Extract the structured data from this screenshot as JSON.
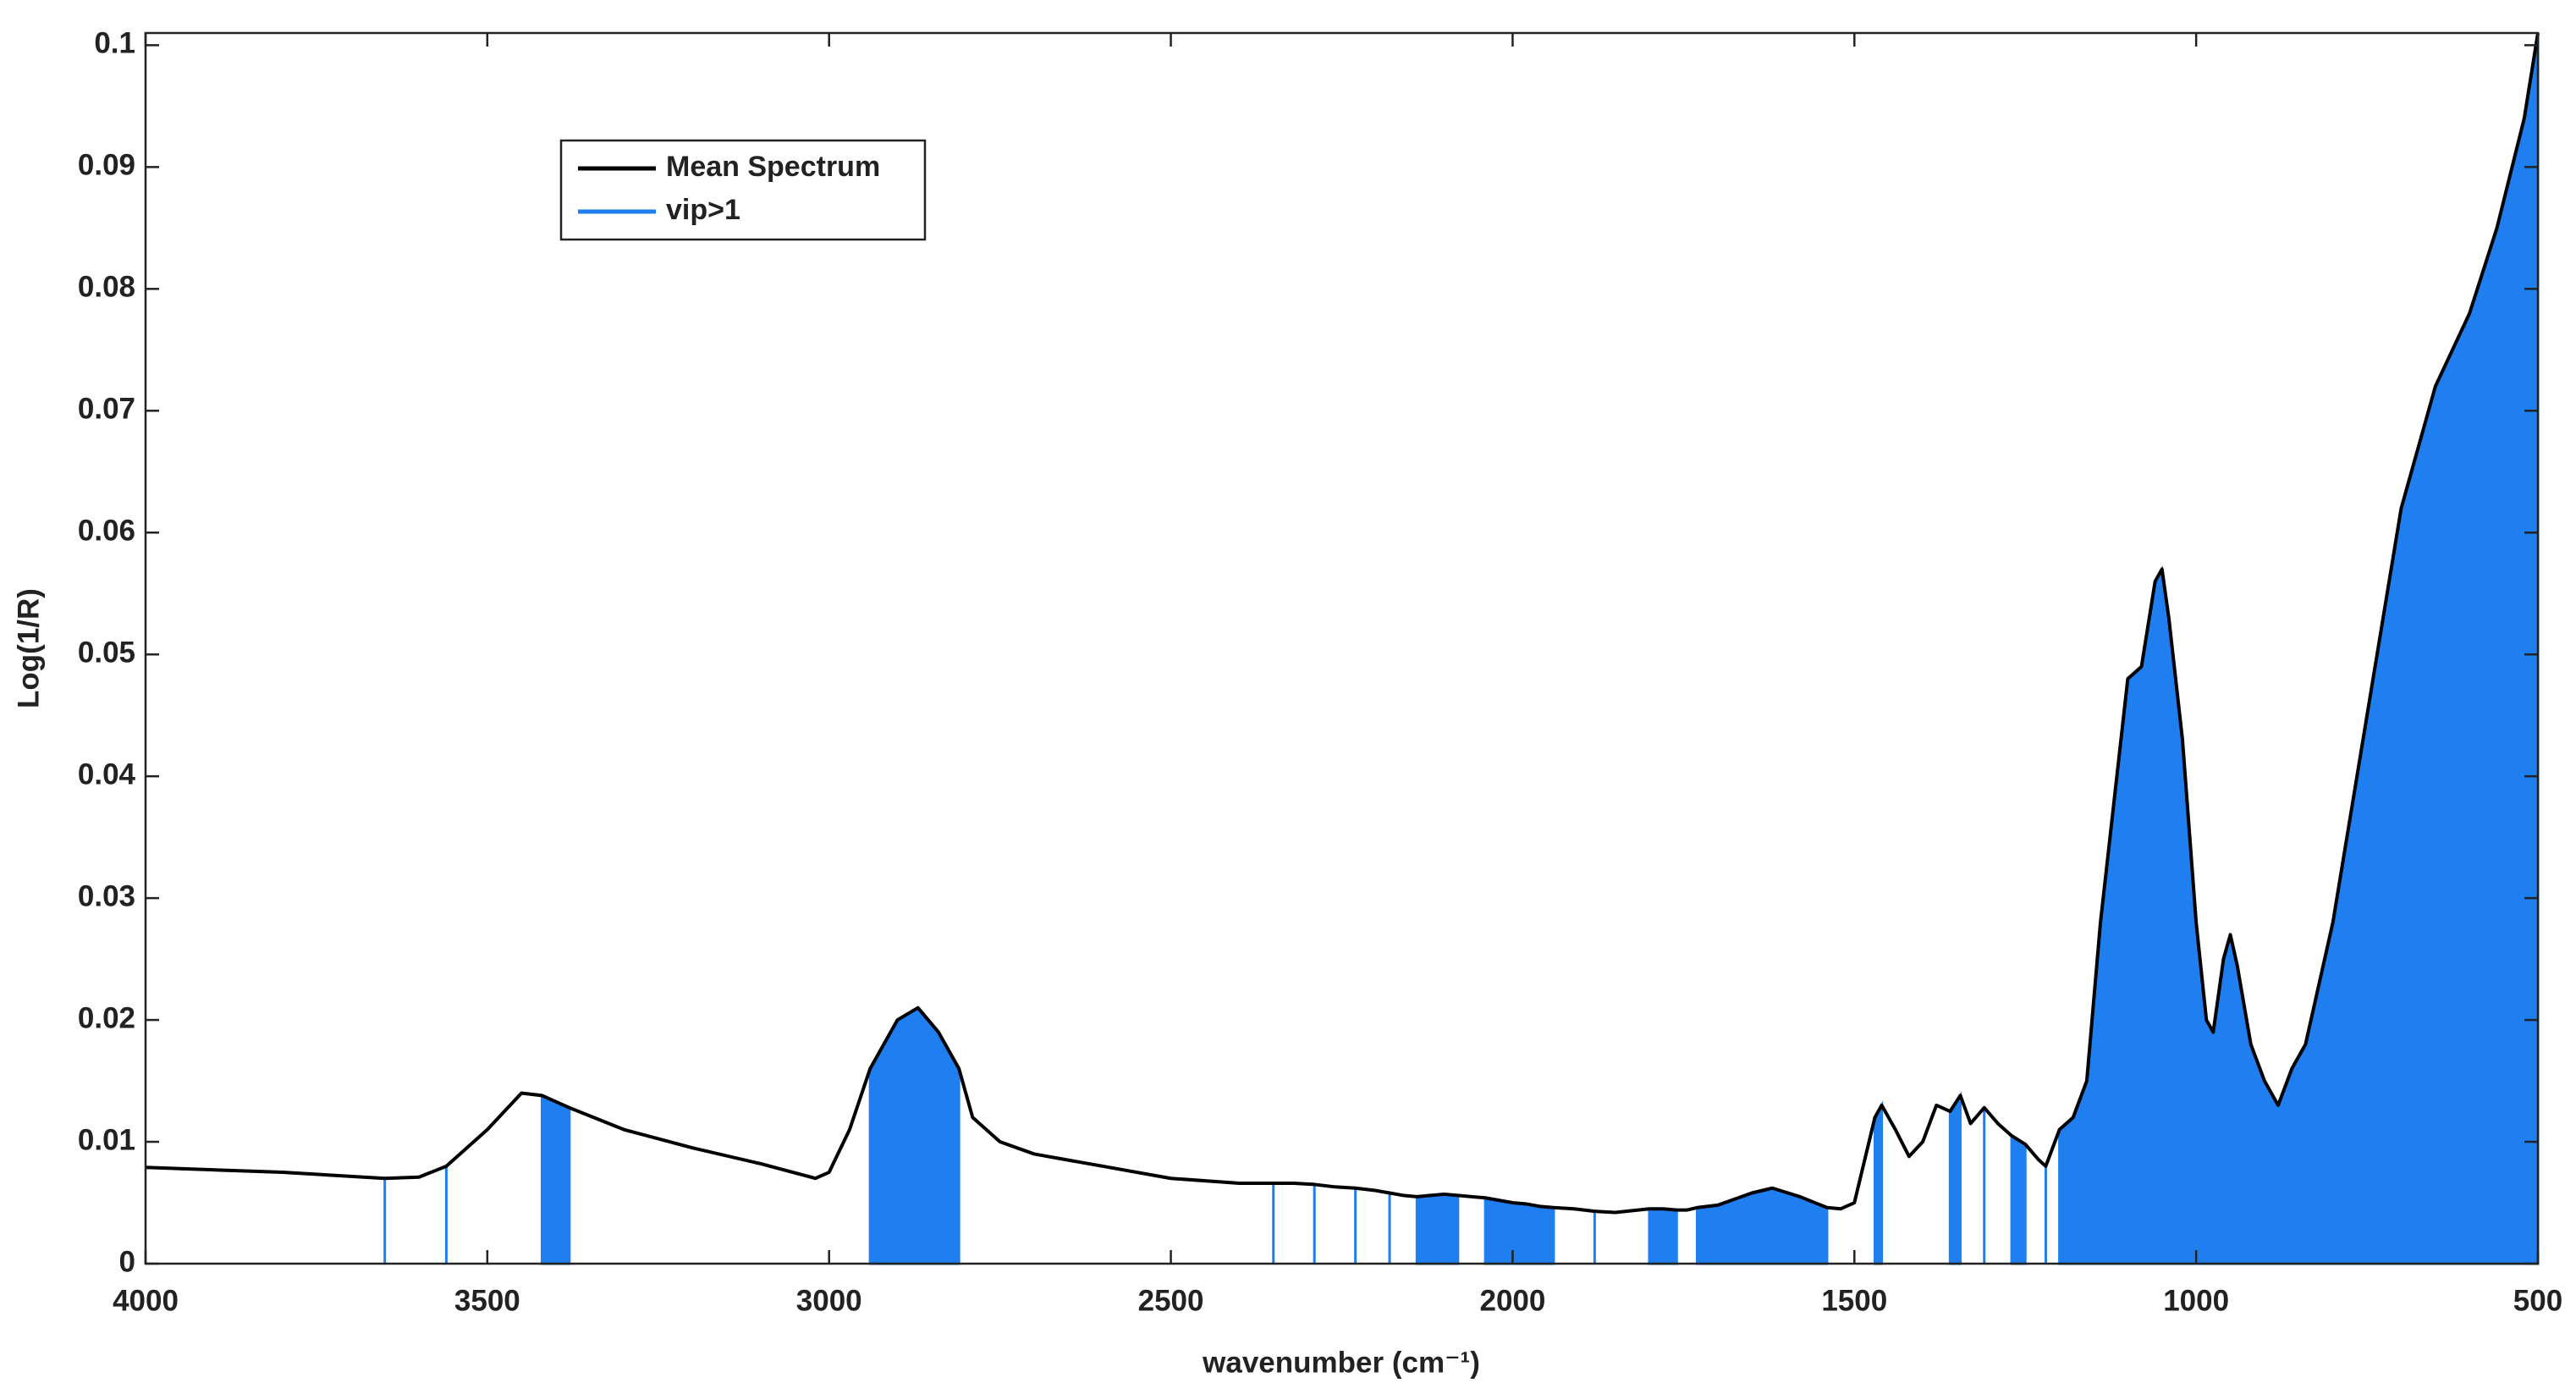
{
  "chart_data": {
    "type": "line",
    "x_label": "wavenumber (cm⁻¹)",
    "y_label": "Log(1/R)",
    "x": [
      4000,
      3800,
      3650,
      3600,
      3560,
      3500,
      3450,
      3420,
      3400,
      3380,
      3300,
      3200,
      3100,
      3020,
      3000,
      2970,
      2940,
      2900,
      2870,
      2840,
      2810,
      2790,
      2750,
      2700,
      2600,
      2500,
      2400,
      2350,
      2320,
      2290,
      2260,
      2230,
      2200,
      2180,
      2160,
      2140,
      2120,
      2100,
      2080,
      2060,
      2040,
      2020,
      2000,
      1980,
      1960,
      1940,
      1910,
      1880,
      1850,
      1800,
      1780,
      1760,
      1745,
      1730,
      1700,
      1650,
      1620,
      1580,
      1540,
      1520,
      1500,
      1470,
      1460,
      1440,
      1420,
      1400,
      1380,
      1360,
      1345,
      1330,
      1310,
      1290,
      1270,
      1250,
      1230,
      1220,
      1210,
      1200,
      1180,
      1160,
      1140,
      1120,
      1100,
      1080,
      1060,
      1050,
      1040,
      1020,
      1000,
      985,
      975,
      960,
      950,
      940,
      920,
      900,
      880,
      860,
      840,
      800,
      750,
      700,
      650,
      600,
      560,
      520,
      500
    ],
    "series": [
      {
        "name": "Mean Spectrum",
        "color": "#000000",
        "values": [
          0.0079,
          0.0075,
          0.007,
          0.0071,
          0.008,
          0.011,
          0.014,
          0.0138,
          0.0133,
          0.0128,
          0.011,
          0.0095,
          0.0082,
          0.007,
          0.0075,
          0.011,
          0.016,
          0.02,
          0.021,
          0.019,
          0.016,
          0.012,
          0.01,
          0.009,
          0.008,
          0.007,
          0.0066,
          0.0066,
          0.0066,
          0.0065,
          0.0063,
          0.0062,
          0.006,
          0.0058,
          0.0056,
          0.0055,
          0.0056,
          0.0057,
          0.0056,
          0.0055,
          0.0054,
          0.0052,
          0.005,
          0.0049,
          0.0047,
          0.0046,
          0.0045,
          0.0043,
          0.0042,
          0.0045,
          0.0045,
          0.0044,
          0.0044,
          0.0046,
          0.0048,
          0.0058,
          0.0062,
          0.0055,
          0.0046,
          0.0045,
          0.005,
          0.012,
          0.013,
          0.011,
          0.0088,
          0.01,
          0.013,
          0.0125,
          0.0138,
          0.0115,
          0.0128,
          0.0115,
          0.0105,
          0.0098,
          0.0085,
          0.008,
          0.0095,
          0.011,
          0.012,
          0.015,
          0.028,
          0.038,
          0.048,
          0.049,
          0.056,
          0.057,
          0.053,
          0.043,
          0.028,
          0.02,
          0.019,
          0.025,
          0.027,
          0.0245,
          0.018,
          0.015,
          0.013,
          0.016,
          0.018,
          0.028,
          0.045,
          0.062,
          0.072,
          0.078,
          0.085,
          0.094,
          0.101
        ]
      },
      {
        "name": "vip>1",
        "color": "#1f7ff0",
        "values": [
          null,
          null,
          0.007,
          null,
          0.008,
          null,
          null,
          0.0138,
          0.0133,
          0.0128,
          null,
          null,
          null,
          null,
          null,
          null,
          0.016,
          0.02,
          0.021,
          0.019,
          0.016,
          null,
          null,
          null,
          null,
          null,
          null,
          0.0066,
          null,
          0.0065,
          null,
          0.0062,
          null,
          0.0058,
          null,
          0.0055,
          0.0056,
          0.0057,
          0.0056,
          null,
          0.0054,
          0.0052,
          0.005,
          0.0049,
          0.0047,
          0.0046,
          null,
          0.0043,
          null,
          0.0045,
          0.0045,
          0.0044,
          null,
          0.0046,
          0.0048,
          0.0058,
          0.0062,
          0.0055,
          0.0046,
          null,
          null,
          0.012,
          0.013,
          null,
          null,
          null,
          null,
          0.0125,
          0.0138,
          null,
          0.0128,
          null,
          0.0105,
          0.0098,
          null,
          0.008,
          null,
          0.011,
          0.012,
          0.015,
          0.028,
          0.038,
          0.048,
          0.049,
          0.056,
          0.057,
          0.053,
          0.043,
          0.028,
          0.02,
          0.019,
          0.025,
          0.027,
          0.0245,
          0.018,
          0.015,
          0.013,
          0.016,
          0.018,
          0.028,
          0.045,
          0.062,
          0.072,
          0.078,
          0.085,
          0.094,
          0.101
        ]
      }
    ],
    "xlim": [
      4000,
      500
    ],
    "ylim": [
      0,
      0.101
    ],
    "xticks": [
      4000,
      3500,
      3000,
      2500,
      2000,
      1500,
      1000,
      500
    ],
    "yticks": [
      0,
      0.01,
      0.02,
      0.03,
      0.04,
      0.05,
      0.06,
      0.07,
      0.08,
      0.09,
      0.1
    ]
  }
}
